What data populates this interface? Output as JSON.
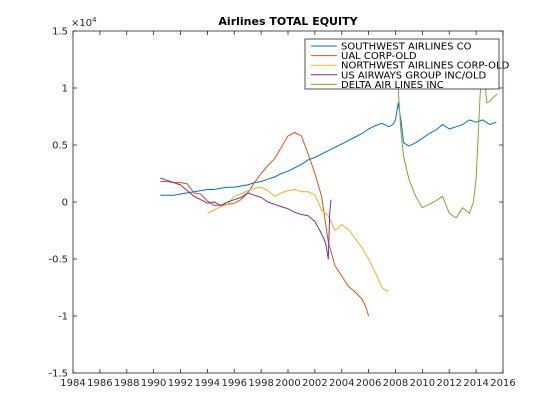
{
  "chart_data": {
    "type": "line",
    "title": "Airlines TOTAL EQUITY",
    "xlabel": "",
    "ylabel": "",
    "y_exponent_label": "×10",
    "y_exponent_power": "4",
    "xlim": [
      1984,
      2016
    ],
    "ylim": [
      -1.5,
      1.5
    ],
    "grid": false,
    "legend_position": "top-right",
    "x_ticks": [
      1984,
      1986,
      1988,
      1990,
      1992,
      1994,
      1996,
      1998,
      2000,
      2002,
      2004,
      2006,
      2008,
      2010,
      2012,
      2014,
      2016
    ],
    "x_tick_labels": [
      "1984",
      "1986",
      "1988",
      "1990",
      "1992",
      "1994",
      "1996",
      "1998",
      "2000",
      "2002",
      "2004",
      "2006",
      "2008",
      "2010",
      "2012",
      "2014",
      "2016"
    ],
    "y_ticks": [
      -1.5,
      -1,
      -0.5,
      0,
      0.5,
      1,
      1.5
    ],
    "y_tick_labels": [
      "-1.5",
      "-1",
      "-0.5",
      "0",
      "0.5",
      "1",
      "1.5"
    ],
    "series": [
      {
        "name": "SOUTHWEST AIRLINES CO",
        "color": "#0072BD",
        "points": [
          [
            1990.5,
            0.06
          ],
          [
            1991,
            0.06
          ],
          [
            1991.5,
            0.06
          ],
          [
            1992,
            0.07
          ],
          [
            1992.5,
            0.08
          ],
          [
            1993,
            0.09
          ],
          [
            1993.5,
            0.1
          ],
          [
            1994,
            0.11
          ],
          [
            1994.5,
            0.11
          ],
          [
            1995,
            0.12
          ],
          [
            1995.5,
            0.13
          ],
          [
            1996,
            0.13
          ],
          [
            1996.5,
            0.14
          ],
          [
            1997,
            0.15
          ],
          [
            1997.5,
            0.17
          ],
          [
            1998,
            0.18
          ],
          [
            1998.5,
            0.2
          ],
          [
            1999,
            0.22
          ],
          [
            1999.5,
            0.25
          ],
          [
            2000,
            0.27
          ],
          [
            2000.5,
            0.3
          ],
          [
            2001,
            0.33
          ],
          [
            2001.5,
            0.37
          ],
          [
            2002,
            0.39
          ],
          [
            2002.5,
            0.42
          ],
          [
            2003,
            0.45
          ],
          [
            2003.5,
            0.48
          ],
          [
            2004,
            0.51
          ],
          [
            2004.5,
            0.54
          ],
          [
            2005,
            0.57
          ],
          [
            2005.5,
            0.6
          ],
          [
            2006,
            0.64
          ],
          [
            2006.5,
            0.67
          ],
          [
            2007,
            0.69
          ],
          [
            2007.5,
            0.66
          ],
          [
            2007.8,
            0.68
          ],
          [
            2008,
            0.72
          ],
          [
            2008.2,
            0.87
          ],
          [
            2008.4,
            0.72
          ],
          [
            2008.6,
            0.52
          ],
          [
            2009,
            0.49
          ],
          [
            2009.5,
            0.52
          ],
          [
            2010,
            0.56
          ],
          [
            2010.5,
            0.6
          ],
          [
            2011,
            0.63
          ],
          [
            2011.5,
            0.68
          ],
          [
            2012,
            0.64
          ],
          [
            2012.5,
            0.66
          ],
          [
            2013,
            0.68
          ],
          [
            2013.5,
            0.72
          ],
          [
            2014,
            0.7
          ],
          [
            2014.5,
            0.72
          ],
          [
            2015,
            0.68
          ],
          [
            2015.5,
            0.7
          ]
        ]
      },
      {
        "name": "UAL CORP-OLD",
        "color": "#D95319",
        "points": [
          [
            1990.5,
            0.18
          ],
          [
            1991,
            0.18
          ],
          [
            1991.5,
            0.17
          ],
          [
            1992,
            0.17
          ],
          [
            1992.5,
            0.16
          ],
          [
            1993,
            0.08
          ],
          [
            1993.5,
            0.07
          ],
          [
            1994,
            0.01
          ],
          [
            1994.5,
            -0.03
          ],
          [
            1995,
            -0.03
          ],
          [
            1995.5,
            -0.02
          ],
          [
            1996,
            -0.01
          ],
          [
            1996.5,
            0.02
          ],
          [
            1997,
            0.08
          ],
          [
            1997.5,
            0.17
          ],
          [
            1998,
            0.25
          ],
          [
            1998.5,
            0.32
          ],
          [
            1999,
            0.38
          ],
          [
            1999.5,
            0.48
          ],
          [
            2000,
            0.58
          ],
          [
            2000.5,
            0.61
          ],
          [
            2001,
            0.58
          ],
          [
            2001.5,
            0.42
          ],
          [
            2002,
            0.25
          ],
          [
            2002.5,
            0.05
          ],
          [
            2003,
            -0.35
          ],
          [
            2003.5,
            -0.56
          ],
          [
            2004,
            -0.65
          ],
          [
            2004.5,
            -0.74
          ],
          [
            2005,
            -0.79
          ],
          [
            2005.5,
            -0.85
          ],
          [
            2005.8,
            -0.92
          ],
          [
            2006,
            -1.0
          ]
        ]
      },
      {
        "name": "NORTHWEST AIRLINES CORP-OLD",
        "color": "#EDB120",
        "points": [
          [
            1994,
            -0.1
          ],
          [
            1994.5,
            -0.07
          ],
          [
            1995,
            -0.04
          ],
          [
            1995.5,
            -0.02
          ],
          [
            1996,
            0.05
          ],
          [
            1996.5,
            0.07
          ],
          [
            1997,
            0.1
          ],
          [
            1997.5,
            0.12
          ],
          [
            1998,
            0.13
          ],
          [
            1998.5,
            0.1
          ],
          [
            1999,
            0.05
          ],
          [
            1999.5,
            0.08
          ],
          [
            2000,
            0.1
          ],
          [
            2000.5,
            0.11
          ],
          [
            2001,
            0.09
          ],
          [
            2001.5,
            0.09
          ],
          [
            2002,
            0.06
          ],
          [
            2002.5,
            -0.07
          ],
          [
            2003,
            -0.12
          ],
          [
            2003.5,
            -0.25
          ],
          [
            2004,
            -0.2
          ],
          [
            2004.5,
            -0.24
          ],
          [
            2005,
            -0.32
          ],
          [
            2005.5,
            -0.4
          ],
          [
            2006,
            -0.5
          ],
          [
            2006.5,
            -0.62
          ],
          [
            2007,
            -0.75
          ],
          [
            2007.3,
            -0.78
          ],
          [
            2007.5,
            -0.78
          ]
        ]
      },
      {
        "name": "US AIRWAYS GROUP INC/OLD",
        "color": "#7E2F8E",
        "points": [
          [
            1990.5,
            0.21
          ],
          [
            1991,
            0.19
          ],
          [
            1991.5,
            0.17
          ],
          [
            1992,
            0.15
          ],
          [
            1992.5,
            0.1
          ],
          [
            1993,
            0.05
          ],
          [
            1993.5,
            0.02
          ],
          [
            1994,
            -0.01
          ],
          [
            1994.5,
            0.0
          ],
          [
            1995,
            -0.03
          ],
          [
            1995.5,
            0.0
          ],
          [
            1996,
            0.02
          ],
          [
            1996.5,
            0.04
          ],
          [
            1997,
            0.08
          ],
          [
            1997.5,
            0.06
          ],
          [
            1998,
            0.04
          ],
          [
            1998.5,
            0.0
          ],
          [
            1999,
            -0.02
          ],
          [
            1999.5,
            -0.04
          ],
          [
            2000,
            -0.06
          ],
          [
            2000.5,
            -0.09
          ],
          [
            2001,
            -0.11
          ],
          [
            2001.5,
            -0.12
          ],
          [
            2002,
            -0.17
          ],
          [
            2002.5,
            -0.28
          ],
          [
            2002.8,
            -0.36
          ],
          [
            2003,
            -0.5
          ],
          [
            2003.1,
            -0.1
          ],
          [
            2003.2,
            0.02
          ]
        ]
      },
      {
        "name": "DELTA AIR LINES INC",
        "color": "#77AC30",
        "points": [
          [
            2007.8,
            1.4
          ],
          [
            2008,
            1.3
          ],
          [
            2008.2,
            1.0
          ],
          [
            2008.4,
            0.62
          ],
          [
            2008.6,
            0.4
          ],
          [
            2009,
            0.2
          ],
          [
            2009.5,
            0.05
          ],
          [
            2010,
            -0.05
          ],
          [
            2010.5,
            -0.02
          ],
          [
            2011,
            0.01
          ],
          [
            2011.5,
            0.05
          ],
          [
            2012,
            -0.1
          ],
          [
            2012.5,
            -0.14
          ],
          [
            2013,
            -0.05
          ],
          [
            2013.5,
            -0.1
          ],
          [
            2013.8,
            0.0
          ],
          [
            2014,
            0.2
          ],
          [
            2014.3,
            0.95
          ],
          [
            2014.5,
            1.2
          ],
          [
            2014.8,
            0.87
          ],
          [
            2015,
            0.88
          ],
          [
            2015.3,
            0.92
          ],
          [
            2015.6,
            0.95
          ]
        ]
      }
    ]
  }
}
